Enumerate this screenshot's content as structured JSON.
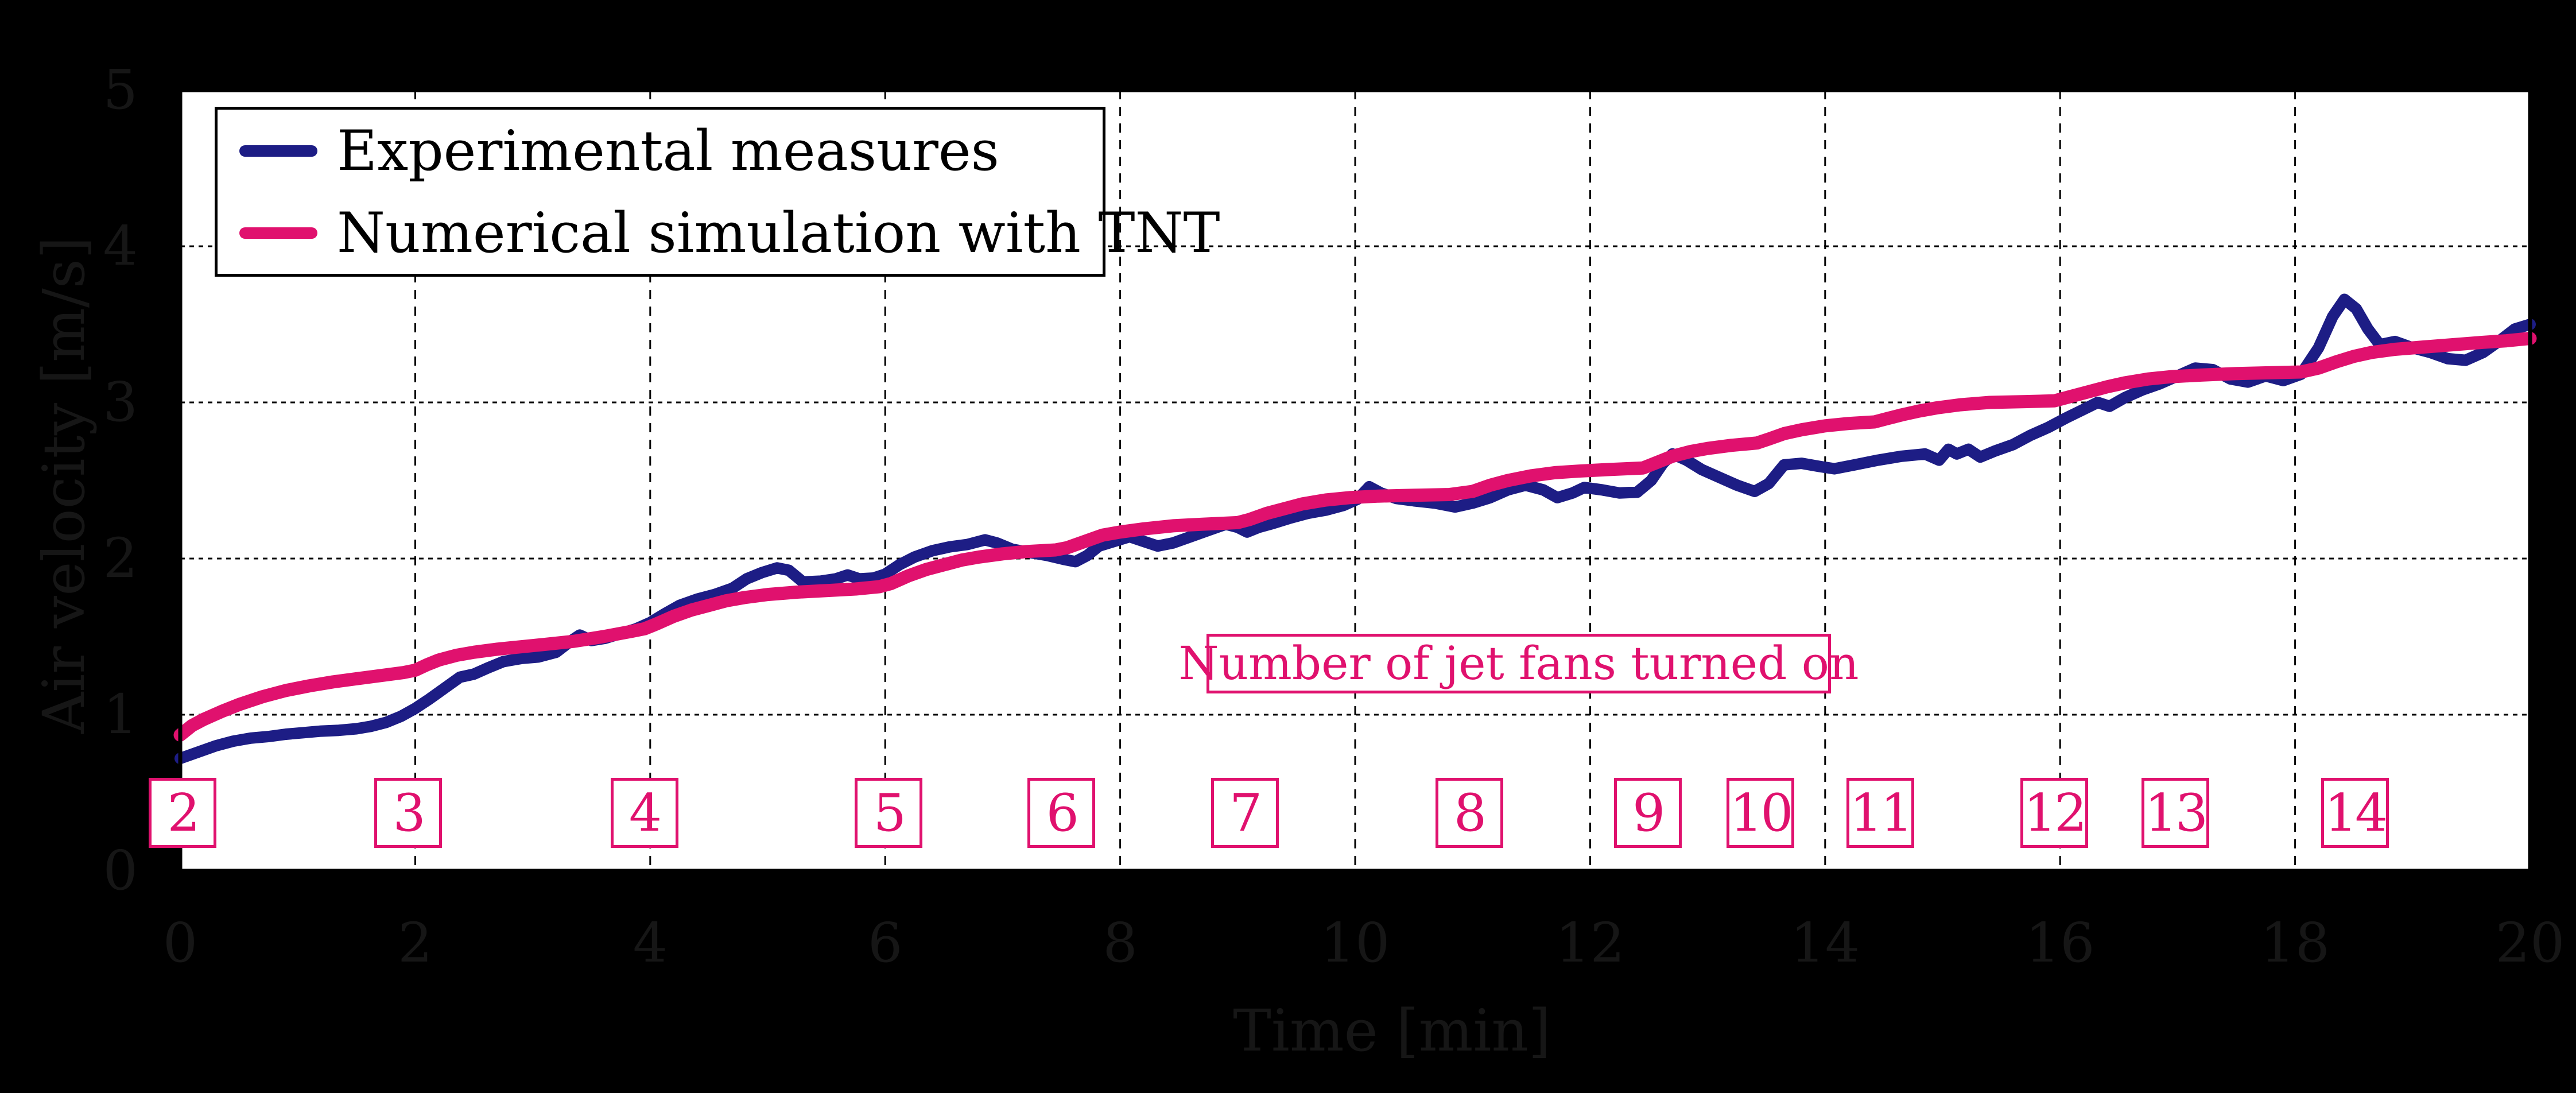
{
  "figure": {
    "background_color": "#000000",
    "plot_background_color": "#ffffff",
    "grid_color": "#000000",
    "axis_text_color": "#161616",
    "accent_pink": "#e0116e",
    "accent_navy": "#1d1d85"
  },
  "annotation": {
    "text": "Number of jet fans turned on",
    "color": "#e0116e"
  },
  "chart_data": {
    "type": "line",
    "title": "",
    "xlabel": "Time [min]",
    "ylabel": "Air velocity [m/s]",
    "xlim": [
      0,
      20
    ],
    "ylim": [
      0,
      5
    ],
    "x_tick_labels": [
      "0",
      "2",
      "4",
      "6",
      "8",
      "10",
      "12",
      "14",
      "16",
      "18",
      "20"
    ],
    "y_tick_labels": [
      "0",
      "1",
      "2",
      "3",
      "4",
      "5"
    ],
    "grid": "on",
    "legend_position": "upper left",
    "jet_fan_events": [
      {
        "fans_on": "2",
        "time_min": 0.02
      },
      {
        "fans_on": "3",
        "time_min": 1.94
      },
      {
        "fans_on": "4",
        "time_min": 3.95
      },
      {
        "fans_on": "5",
        "time_min": 6.03
      },
      {
        "fans_on": "6",
        "time_min": 7.5
      },
      {
        "fans_on": "7",
        "time_min": 9.06
      },
      {
        "fans_on": "8",
        "time_min": 10.97
      },
      {
        "fans_on": "9",
        "time_min": 12.49
      },
      {
        "fans_on": "10",
        "time_min": 13.45
      },
      {
        "fans_on": "11",
        "time_min": 14.47
      },
      {
        "fans_on": "12",
        "time_min": 15.95
      },
      {
        "fans_on": "13",
        "time_min": 16.98
      },
      {
        "fans_on": "14",
        "time_min": 18.51
      }
    ],
    "series": [
      {
        "name": "Experimental measures",
        "color": "#1d1d85",
        "stroke_width": 20,
        "points": [
          [
            0,
            0.72
          ],
          [
            0.15,
            0.76
          ],
          [
            0.3,
            0.8
          ],
          [
            0.45,
            0.83
          ],
          [
            0.6,
            0.85
          ],
          [
            0.75,
            0.86
          ],
          [
            0.9,
            0.875
          ],
          [
            1.05,
            0.885
          ],
          [
            1.2,
            0.895
          ],
          [
            1.35,
            0.9
          ],
          [
            1.5,
            0.91
          ],
          [
            1.62,
            0.925
          ],
          [
            1.75,
            0.95
          ],
          [
            1.88,
            0.99
          ],
          [
            2,
            1.04
          ],
          [
            2.12,
            1.1
          ],
          [
            2.25,
            1.17
          ],
          [
            2.38,
            1.24
          ],
          [
            2.5,
            1.26
          ],
          [
            2.62,
            1.3
          ],
          [
            2.75,
            1.34
          ],
          [
            2.9,
            1.36
          ],
          [
            3.05,
            1.37
          ],
          [
            3.2,
            1.4
          ],
          [
            3.32,
            1.47
          ],
          [
            3.4,
            1.51
          ],
          [
            3.5,
            1.475
          ],
          [
            3.62,
            1.49
          ],
          [
            3.75,
            1.52
          ],
          [
            3.88,
            1.55
          ],
          [
            4,
            1.59
          ],
          [
            4.12,
            1.645
          ],
          [
            4.25,
            1.7
          ],
          [
            4.4,
            1.74
          ],
          [
            4.55,
            1.77
          ],
          [
            4.7,
            1.81
          ],
          [
            4.82,
            1.87
          ],
          [
            4.95,
            1.91
          ],
          [
            5.08,
            1.94
          ],
          [
            5.18,
            1.925
          ],
          [
            5.3,
            1.85
          ],
          [
            5.45,
            1.855
          ],
          [
            5.58,
            1.87
          ],
          [
            5.68,
            1.895
          ],
          [
            5.78,
            1.87
          ],
          [
            5.9,
            1.875
          ],
          [
            6,
            1.9
          ],
          [
            6.12,
            1.96
          ],
          [
            6.25,
            2.01
          ],
          [
            6.4,
            2.05
          ],
          [
            6.55,
            2.075
          ],
          [
            6.7,
            2.09
          ],
          [
            6.85,
            2.12
          ],
          [
            6.95,
            2.1
          ],
          [
            7.08,
            2.06
          ],
          [
            7.22,
            2.04
          ],
          [
            7.38,
            2.02
          ],
          [
            7.52,
            1.995
          ],
          [
            7.62,
            1.98
          ],
          [
            7.72,
            2.02
          ],
          [
            7.82,
            2.08
          ],
          [
            7.95,
            2.11
          ],
          [
            8.08,
            2.14
          ],
          [
            8.2,
            2.11
          ],
          [
            8.32,
            2.08
          ],
          [
            8.45,
            2.1
          ],
          [
            8.6,
            2.14
          ],
          [
            8.75,
            2.18
          ],
          [
            8.9,
            2.22
          ],
          [
            9,
            2.2
          ],
          [
            9.08,
            2.17
          ],
          [
            9.18,
            2.2
          ],
          [
            9.3,
            2.225
          ],
          [
            9.45,
            2.26
          ],
          [
            9.6,
            2.29
          ],
          [
            9.75,
            2.31
          ],
          [
            9.9,
            2.34
          ],
          [
            10.02,
            2.38
          ],
          [
            10.12,
            2.46
          ],
          [
            10.22,
            2.42
          ],
          [
            10.35,
            2.385
          ],
          [
            10.5,
            2.37
          ],
          [
            10.68,
            2.355
          ],
          [
            10.85,
            2.33
          ],
          [
            11,
            2.355
          ],
          [
            11.15,
            2.39
          ],
          [
            11.3,
            2.44
          ],
          [
            11.45,
            2.47
          ],
          [
            11.6,
            2.44
          ],
          [
            11.72,
            2.39
          ],
          [
            11.85,
            2.42
          ],
          [
            11.95,
            2.455
          ],
          [
            12.1,
            2.44
          ],
          [
            12.25,
            2.42
          ],
          [
            12.4,
            2.425
          ],
          [
            12.52,
            2.5
          ],
          [
            12.62,
            2.61
          ],
          [
            12.7,
            2.67
          ],
          [
            12.82,
            2.63
          ],
          [
            12.95,
            2.57
          ],
          [
            13.1,
            2.52
          ],
          [
            13.25,
            2.47
          ],
          [
            13.4,
            2.43
          ],
          [
            13.52,
            2.48
          ],
          [
            13.65,
            2.6
          ],
          [
            13.8,
            2.61
          ],
          [
            13.95,
            2.59
          ],
          [
            14.08,
            2.575
          ],
          [
            14.25,
            2.6
          ],
          [
            14.45,
            2.63
          ],
          [
            14.65,
            2.655
          ],
          [
            14.85,
            2.67
          ],
          [
            14.97,
            2.63
          ],
          [
            15.05,
            2.7
          ],
          [
            15.12,
            2.67
          ],
          [
            15.22,
            2.7
          ],
          [
            15.32,
            2.65
          ],
          [
            15.45,
            2.69
          ],
          [
            15.6,
            2.73
          ],
          [
            15.75,
            2.79
          ],
          [
            15.9,
            2.84
          ],
          [
            16.05,
            2.9
          ],
          [
            16.2,
            2.955
          ],
          [
            16.32,
            3
          ],
          [
            16.42,
            2.975
          ],
          [
            16.55,
            3.03
          ],
          [
            16.7,
            3.08
          ],
          [
            16.85,
            3.12
          ],
          [
            17,
            3.17
          ],
          [
            17.15,
            3.22
          ],
          [
            17.3,
            3.21
          ],
          [
            17.45,
            3.15
          ],
          [
            17.6,
            3.13
          ],
          [
            17.75,
            3.17
          ],
          [
            17.9,
            3.14
          ],
          [
            18.05,
            3.18
          ],
          [
            18.2,
            3.35
          ],
          [
            18.32,
            3.55
          ],
          [
            18.42,
            3.66
          ],
          [
            18.52,
            3.6
          ],
          [
            18.62,
            3.47
          ],
          [
            18.72,
            3.37
          ],
          [
            18.85,
            3.39
          ],
          [
            19,
            3.35
          ],
          [
            19.15,
            3.32
          ],
          [
            19.3,
            3.28
          ],
          [
            19.45,
            3.27
          ],
          [
            19.6,
            3.32
          ],
          [
            19.75,
            3.4
          ],
          [
            19.87,
            3.47
          ],
          [
            20,
            3.5
          ]
        ]
      },
      {
        "name": "Numerical simulation with TNT",
        "color": "#e0116e",
        "stroke_width": 23,
        "points": [
          [
            0,
            0.87
          ],
          [
            0.1,
            0.93
          ],
          [
            0.2,
            0.97
          ],
          [
            0.35,
            1.02
          ],
          [
            0.5,
            1.065
          ],
          [
            0.7,
            1.115
          ],
          [
            0.9,
            1.155
          ],
          [
            1.1,
            1.185
          ],
          [
            1.3,
            1.21
          ],
          [
            1.5,
            1.23
          ],
          [
            1.7,
            1.25
          ],
          [
            1.9,
            1.27
          ],
          [
            2,
            1.285
          ],
          [
            2.1,
            1.32
          ],
          [
            2.2,
            1.35
          ],
          [
            2.35,
            1.38
          ],
          [
            2.5,
            1.4
          ],
          [
            2.7,
            1.42
          ],
          [
            2.9,
            1.435
          ],
          [
            3.1,
            1.45
          ],
          [
            3.35,
            1.47
          ],
          [
            3.6,
            1.5
          ],
          [
            3.85,
            1.535
          ],
          [
            3.95,
            1.55
          ],
          [
            4.05,
            1.58
          ],
          [
            4.2,
            1.63
          ],
          [
            4.35,
            1.67
          ],
          [
            4.5,
            1.7
          ],
          [
            4.65,
            1.73
          ],
          [
            4.8,
            1.75
          ],
          [
            5,
            1.77
          ],
          [
            5.25,
            1.785
          ],
          [
            5.5,
            1.795
          ],
          [
            5.75,
            1.805
          ],
          [
            5.95,
            1.82
          ],
          [
            6.05,
            1.84
          ],
          [
            6.2,
            1.89
          ],
          [
            6.35,
            1.93
          ],
          [
            6.5,
            1.96
          ],
          [
            6.65,
            1.99
          ],
          [
            6.8,
            2.01
          ],
          [
            7,
            2.03
          ],
          [
            7.2,
            2.045
          ],
          [
            7.45,
            2.055
          ],
          [
            7.55,
            2.07
          ],
          [
            7.7,
            2.11
          ],
          [
            7.85,
            2.15
          ],
          [
            8,
            2.17
          ],
          [
            8.2,
            2.19
          ],
          [
            8.45,
            2.21
          ],
          [
            8.7,
            2.22
          ],
          [
            9,
            2.23
          ],
          [
            9.1,
            2.25
          ],
          [
            9.25,
            2.29
          ],
          [
            9.4,
            2.32
          ],
          [
            9.55,
            2.35
          ],
          [
            9.75,
            2.375
          ],
          [
            9.95,
            2.39
          ],
          [
            10.2,
            2.4
          ],
          [
            10.5,
            2.405
          ],
          [
            10.8,
            2.41
          ],
          [
            11,
            2.43
          ],
          [
            11.15,
            2.47
          ],
          [
            11.3,
            2.5
          ],
          [
            11.5,
            2.53
          ],
          [
            11.7,
            2.55
          ],
          [
            11.9,
            2.56
          ],
          [
            12.15,
            2.57
          ],
          [
            12.45,
            2.58
          ],
          [
            12.55,
            2.61
          ],
          [
            12.7,
            2.655
          ],
          [
            12.85,
            2.685
          ],
          [
            13,
            2.705
          ],
          [
            13.2,
            2.725
          ],
          [
            13.42,
            2.74
          ],
          [
            13.52,
            2.765
          ],
          [
            13.65,
            2.8
          ],
          [
            13.8,
            2.825
          ],
          [
            14,
            2.85
          ],
          [
            14.2,
            2.865
          ],
          [
            14.42,
            2.875
          ],
          [
            14.52,
            2.895
          ],
          [
            14.65,
            2.92
          ],
          [
            14.8,
            2.945
          ],
          [
            14.95,
            2.965
          ],
          [
            15.15,
            2.985
          ],
          [
            15.4,
            3
          ],
          [
            15.7,
            3.005
          ],
          [
            15.95,
            3.01
          ],
          [
            16.1,
            3.04
          ],
          [
            16.25,
            3.07
          ],
          [
            16.4,
            3.1
          ],
          [
            16.55,
            3.125
          ],
          [
            16.75,
            3.15
          ],
          [
            16.95,
            3.165
          ],
          [
            17.2,
            3.175
          ],
          [
            17.5,
            3.185
          ],
          [
            17.8,
            3.19
          ],
          [
            18.05,
            3.195
          ],
          [
            18.2,
            3.22
          ],
          [
            18.35,
            3.26
          ],
          [
            18.5,
            3.295
          ],
          [
            18.65,
            3.32
          ],
          [
            18.85,
            3.34
          ],
          [
            19.1,
            3.355
          ],
          [
            19.35,
            3.37
          ],
          [
            19.6,
            3.385
          ],
          [
            19.8,
            3.395
          ],
          [
            20,
            3.41
          ]
        ]
      }
    ]
  }
}
